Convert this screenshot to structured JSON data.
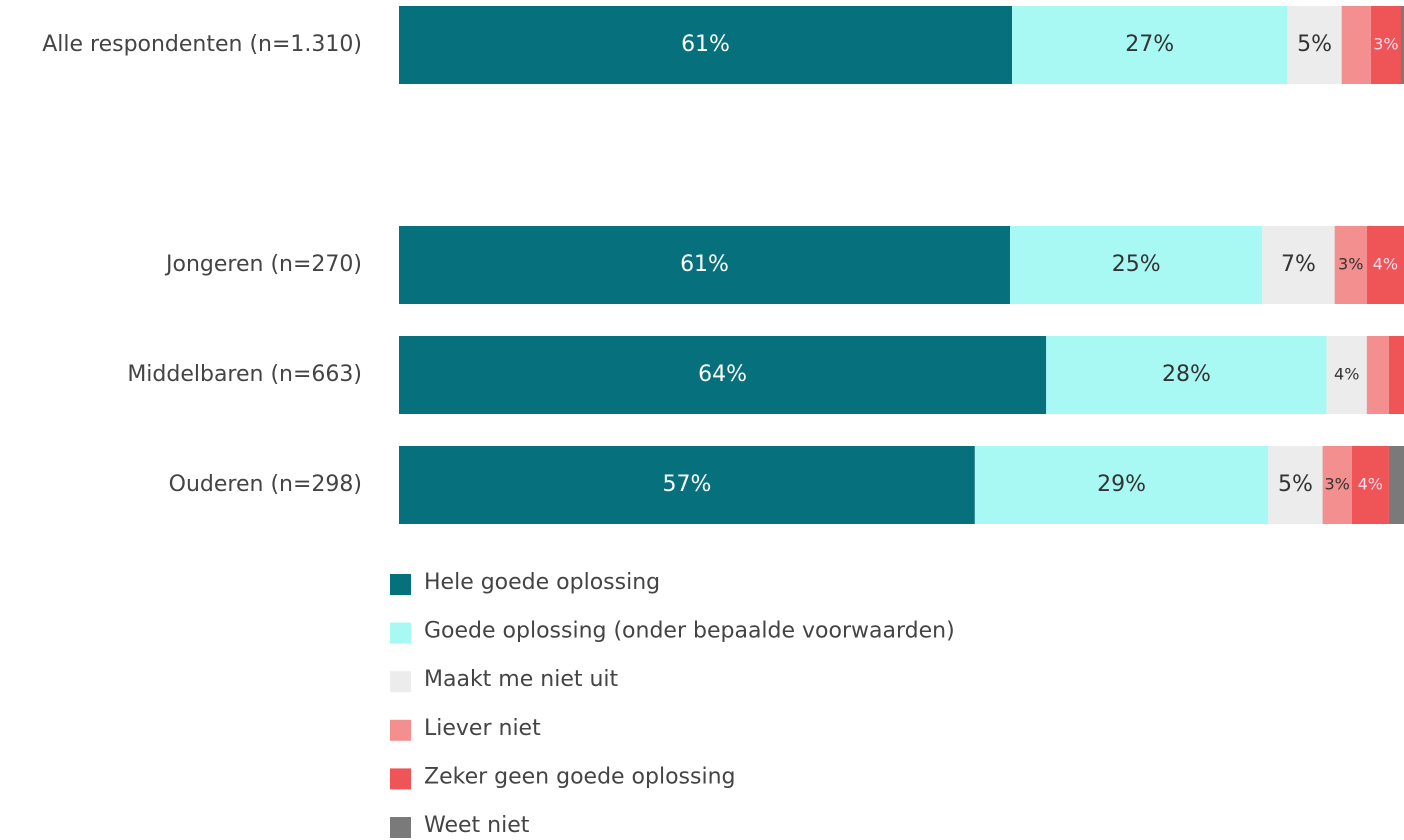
{
  "chart_data": {
    "type": "stacked-bar-horizontal",
    "categories": [
      "Alle respondenten (n=1.310)",
      "Jongeren (n=270)",
      "Middelbaren (n=663)",
      "Ouderen (n=298)"
    ],
    "xlim": [
      0,
      100
    ],
    "series": [
      {
        "name": "Hele goede oplossing",
        "color": "#06707c",
        "values": [
          61.0,
          60.8,
          64.4,
          57.3
        ],
        "value_labels": [
          "61%",
          "61%",
          "64%",
          "57%"
        ]
      },
      {
        "name": "Goede oplossing (onder bepaalde voorwaarden)",
        "color": "#a8f8f4",
        "values": [
          27.4,
          25.1,
          27.9,
          29.2
        ],
        "value_labels": [
          "27%",
          "25%",
          "28%",
          "29%"
        ]
      },
      {
        "name": "Maakt me niet uit",
        "color": "#ececec",
        "values": [
          5.4,
          7.2,
          4.0,
          5.4
        ],
        "value_labels": [
          "5%",
          "7%",
          "4%",
          "5%"
        ]
      },
      {
        "name": "Liever niet",
        "color": "#f48f8f",
        "values": [
          2.9,
          3.2,
          2.2,
          2.9
        ],
        "value_labels": [
          null,
          "3%",
          null,
          "3%"
        ]
      },
      {
        "name": "Zeker geen goede oplossing",
        "color": "#ef5456",
        "values": [
          3.0,
          3.7,
          1.5,
          3.7
        ],
        "value_labels": [
          "3%",
          "4%",
          null,
          "4%"
        ]
      },
      {
        "name": "Weet niet",
        "color": "#7a7a7a",
        "values": [
          0.3,
          0,
          0,
          1.5
        ],
        "value_labels": [
          null,
          null,
          null,
          null
        ]
      }
    ]
  }
}
